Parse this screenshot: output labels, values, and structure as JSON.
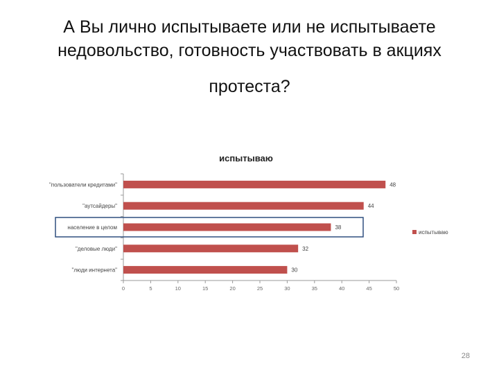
{
  "slide": {
    "title_line1": "А Вы лично испытываете или не испытываете",
    "title_line2": "недовольство, готовность участвовать в акциях",
    "title_line3": "протеста?",
    "page_number": "28"
  },
  "chart_data": {
    "type": "bar",
    "orientation": "horizontal",
    "title": "испытываю",
    "categories": [
      "\"пользователи кредитами\"",
      "\"аутсайдеры\"",
      "население в целом",
      "\"деловые люди\"",
      "\"люди интернета\""
    ],
    "series": [
      {
        "name": "испытываю",
        "values": [
          48,
          44,
          38,
          32,
          30
        ]
      }
    ],
    "xlim": [
      0,
      50
    ],
    "xticks": [
      0,
      5,
      10,
      15,
      20,
      25,
      30,
      35,
      40,
      45,
      50
    ],
    "legend_position": "right",
    "highlighted_category": "население в целом",
    "bar_color": "#c0504d",
    "highlight_color": "#2f4f7f",
    "gridlines": false
  }
}
